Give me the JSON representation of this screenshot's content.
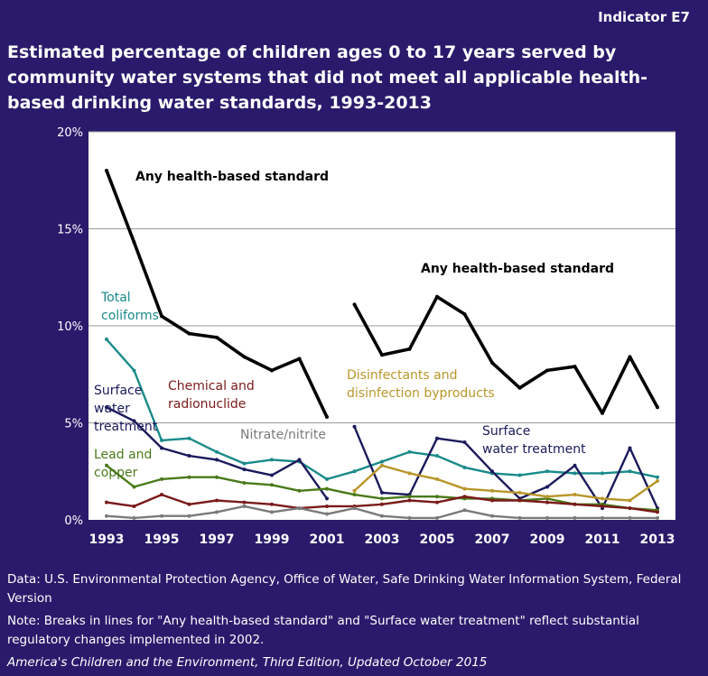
{
  "header": {
    "indicator": "Indicator E7",
    "title": "Estimated percentage of children ages 0 to 17 years served by community water systems that did not meet all applicable health-based drinking water standards, 1993-2013"
  },
  "footer": {
    "data_source": "Data: U.S. Environmental Protection Agency, Office of Water, Safe Drinking Water Information System, Federal Version",
    "note": "Note: Breaks in lines for \"Any health-based standard\" and \"Surface water treatment\" reflect substantial regulatory changes implemented in 2002.",
    "citation": "America's Children and the Environment, Third Edition, Updated October 2015"
  },
  "colors": {
    "background": "#2a1a6b",
    "plot_area": "#ffffff",
    "gridline": "#9a9a9a",
    "tick_label": "#ffffff"
  },
  "chart_data": {
    "type": "line",
    "ylim": [
      0,
      20
    ],
    "yticks": [
      "0%",
      "5%",
      "10%",
      "15%",
      "20%"
    ],
    "ytick_values": [
      0,
      5,
      10,
      15,
      20
    ],
    "xlim": [
      1993,
      2013
    ],
    "xticks": [
      "1993",
      "1995",
      "1997",
      "1999",
      "2001",
      "2003",
      "2005",
      "2007",
      "2009",
      "2011",
      "2013"
    ],
    "xtick_values": [
      1993,
      1995,
      1997,
      1999,
      2001,
      2003,
      2005,
      2007,
      2009,
      2011,
      2013
    ],
    "grid": "horizontal",
    "series": [
      {
        "name": "Any health-based standard",
        "color": "#000000",
        "segments": [
          {
            "x": [
              1993,
              1994,
              1995,
              1996,
              1997,
              1998,
              1999,
              2000,
              2001
            ],
            "y": [
              18.0,
              14.3,
              10.5,
              9.6,
              9.4,
              8.4,
              7.7,
              8.3,
              5.3
            ]
          },
          {
            "x": [
              2002,
              2003,
              2004,
              2005,
              2006,
              2007,
              2008,
              2009,
              2010,
              2011,
              2012,
              2013
            ],
            "y": [
              11.1,
              8.5,
              8.8,
              11.5,
              10.6,
              8.1,
              6.8,
              7.7,
              7.9,
              5.5,
              8.4,
              5.8
            ]
          }
        ]
      },
      {
        "name": "Total coliforms",
        "color": "#1a8a8a",
        "segments": [
          {
            "x": [
              1993,
              1994,
              1995,
              1996,
              1997,
              1998,
              1999,
              2000,
              2001,
              2002,
              2003,
              2004,
              2005,
              2006,
              2007,
              2008,
              2009,
              2010,
              2011,
              2012,
              2013
            ],
            "y": [
              9.3,
              7.7,
              4.1,
              4.2,
              3.5,
              2.9,
              3.1,
              3.0,
              2.1,
              2.5,
              3.0,
              3.5,
              3.3,
              2.7,
              2.4,
              2.3,
              2.5,
              2.4,
              2.4,
              2.5,
              2.2
            ]
          }
        ]
      },
      {
        "name": "Surface water treatment",
        "color": "#1a1a5c",
        "segments": [
          {
            "x": [
              1993,
              1994,
              1995,
              1996,
              1997,
              1998,
              1999,
              2000,
              2001
            ],
            "y": [
              5.8,
              5.1,
              3.7,
              3.3,
              3.1,
              2.6,
              2.3,
              3.1,
              1.1
            ]
          },
          {
            "x": [
              2002,
              2003,
              2004,
              2005,
              2006,
              2007,
              2008,
              2009,
              2010,
              2011,
              2012,
              2013
            ],
            "y": [
              4.8,
              1.4,
              1.3,
              4.2,
              4.0,
              2.5,
              1.1,
              1.7,
              2.8,
              0.6,
              3.7,
              0.6
            ]
          }
        ]
      },
      {
        "name": "Lead and copper",
        "color": "#4a7a1a",
        "segments": [
          {
            "x": [
              1993,
              1994,
              1995,
              1996,
              1997,
              1998,
              1999,
              2000,
              2001,
              2002,
              2003,
              2004,
              2005,
              2006,
              2007,
              2008,
              2009,
              2010,
              2011,
              2012,
              2013
            ],
            "y": [
              2.8,
              1.7,
              2.1,
              2.2,
              2.2,
              1.9,
              1.8,
              1.5,
              1.6,
              1.3,
              1.1,
              1.2,
              1.2,
              1.1,
              1.1,
              1.0,
              1.1,
              0.8,
              0.8,
              0.6,
              0.5
            ]
          }
        ]
      },
      {
        "name": "Chemical and radionuclide",
        "color": "#7a1a1a",
        "segments": [
          {
            "x": [
              1993,
              1994,
              1995,
              1996,
              1997,
              1998,
              1999,
              2000,
              2001,
              2002,
              2003,
              2004,
              2005,
              2006,
              2007,
              2008,
              2009,
              2010,
              2011,
              2012,
              2013
            ],
            "y": [
              0.9,
              0.7,
              1.3,
              0.8,
              1.0,
              0.9,
              0.8,
              0.6,
              0.7,
              0.7,
              0.8,
              1.0,
              0.9,
              1.2,
              1.0,
              1.0,
              0.9,
              0.8,
              0.7,
              0.6,
              0.4
            ]
          }
        ]
      },
      {
        "name": "Nitrate/nitrite",
        "color": "#7a7a7a",
        "segments": [
          {
            "x": [
              1993,
              1994,
              1995,
              1996,
              1997,
              1998,
              1999,
              2000,
              2001,
              2002,
              2003,
              2004,
              2005,
              2006,
              2007,
              2008,
              2009,
              2010,
              2011,
              2012,
              2013
            ],
            "y": [
              0.2,
              0.1,
              0.2,
              0.2,
              0.4,
              0.7,
              0.4,
              0.6,
              0.3,
              0.6,
              0.2,
              0.1,
              0.1,
              0.5,
              0.2,
              0.1,
              0.1,
              0.1,
              0.1,
              0.1,
              0.1
            ]
          }
        ]
      },
      {
        "name": "Disinfectants and disinfection byproducts",
        "color": "#b8962a",
        "segments": [
          {
            "x": [
              2002,
              2003,
              2004,
              2005,
              2006,
              2007,
              2008,
              2009,
              2010,
              2011,
              2012,
              2013
            ],
            "y": [
              1.5,
              2.8,
              2.4,
              2.1,
              1.6,
              1.5,
              1.4,
              1.2,
              1.3,
              1.1,
              1.0,
              2.0
            ]
          }
        ]
      }
    ],
    "annotations": [
      {
        "text": "Any health-based standard",
        "series": "Any health-based standard",
        "lines": [
          "Any health-based standard"
        ]
      },
      {
        "text": "Any health-based standard",
        "series": "Any health-based standard",
        "lines": [
          "Any health-based standard"
        ]
      },
      {
        "text": "Total coliforms",
        "series": "Total coliforms",
        "lines": [
          "Total",
          "coliforms"
        ]
      },
      {
        "text": "Surface water treatment",
        "series": "Surface water treatment",
        "lines": [
          "Surface",
          "water",
          "treatment"
        ]
      },
      {
        "text": "Surface water treatment",
        "series": "Surface water treatment",
        "lines": [
          "Surface",
          "water treatment"
        ]
      },
      {
        "text": "Lead and copper",
        "series": "Lead and copper",
        "lines": [
          "Lead and",
          "copper"
        ]
      },
      {
        "text": "Chemical and radionuclide",
        "series": "Chemical and radionuclide",
        "lines": [
          "Chemical and",
          "radionuclide"
        ]
      },
      {
        "text": "Nitrate/nitrite",
        "series": "Nitrate/nitrite",
        "lines": [
          "Nitrate/nitrite"
        ]
      },
      {
        "text": "Disinfectants and disinfection byproducts",
        "series": "Disinfectants and disinfection byproducts",
        "lines": [
          "Disinfectants and",
          "disinfection byproducts"
        ]
      }
    ]
  }
}
